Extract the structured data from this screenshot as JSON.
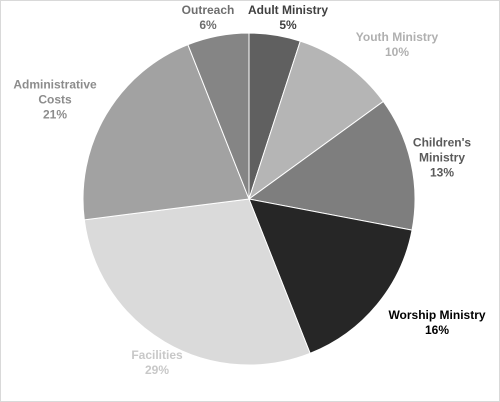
{
  "chart_data": {
    "type": "pie",
    "title": "",
    "start_angle_deg": 0,
    "direction": "clockwise",
    "slices": [
      {
        "label_lines": [
          "Adult Ministry"
        ],
        "value": 5,
        "value_text": "5%",
        "color": "#606060",
        "label_color": "#404040"
      },
      {
        "label_lines": [
          "Youth Ministry"
        ],
        "value": 10,
        "value_text": "10%",
        "color": "#b5b5b5",
        "label_color": "#b0b0b0"
      },
      {
        "label_lines": [
          "Children's",
          "Ministry"
        ],
        "value": 13,
        "value_text": "13%",
        "color": "#7e7e7e",
        "label_color": "#5a5a5a"
      },
      {
        "label_lines": [
          "Worship Ministry"
        ],
        "value": 16,
        "value_text": "16%",
        "color": "#262626",
        "label_color": "#000000"
      },
      {
        "label_lines": [
          "Facilities"
        ],
        "value": 29,
        "value_text": "29%",
        "color": "#dadada",
        "label_color": "#c8c8c8"
      },
      {
        "label_lines": [
          "Administrative",
          "Costs"
        ],
        "value": 21,
        "value_text": "21%",
        "color": "#a2a2a2",
        "label_color": "#8c8c8c"
      },
      {
        "label_lines": [
          "Outreach"
        ],
        "value": 6,
        "value_text": "6%",
        "color": "#858585",
        "label_color": "#6e6e6e"
      }
    ]
  }
}
